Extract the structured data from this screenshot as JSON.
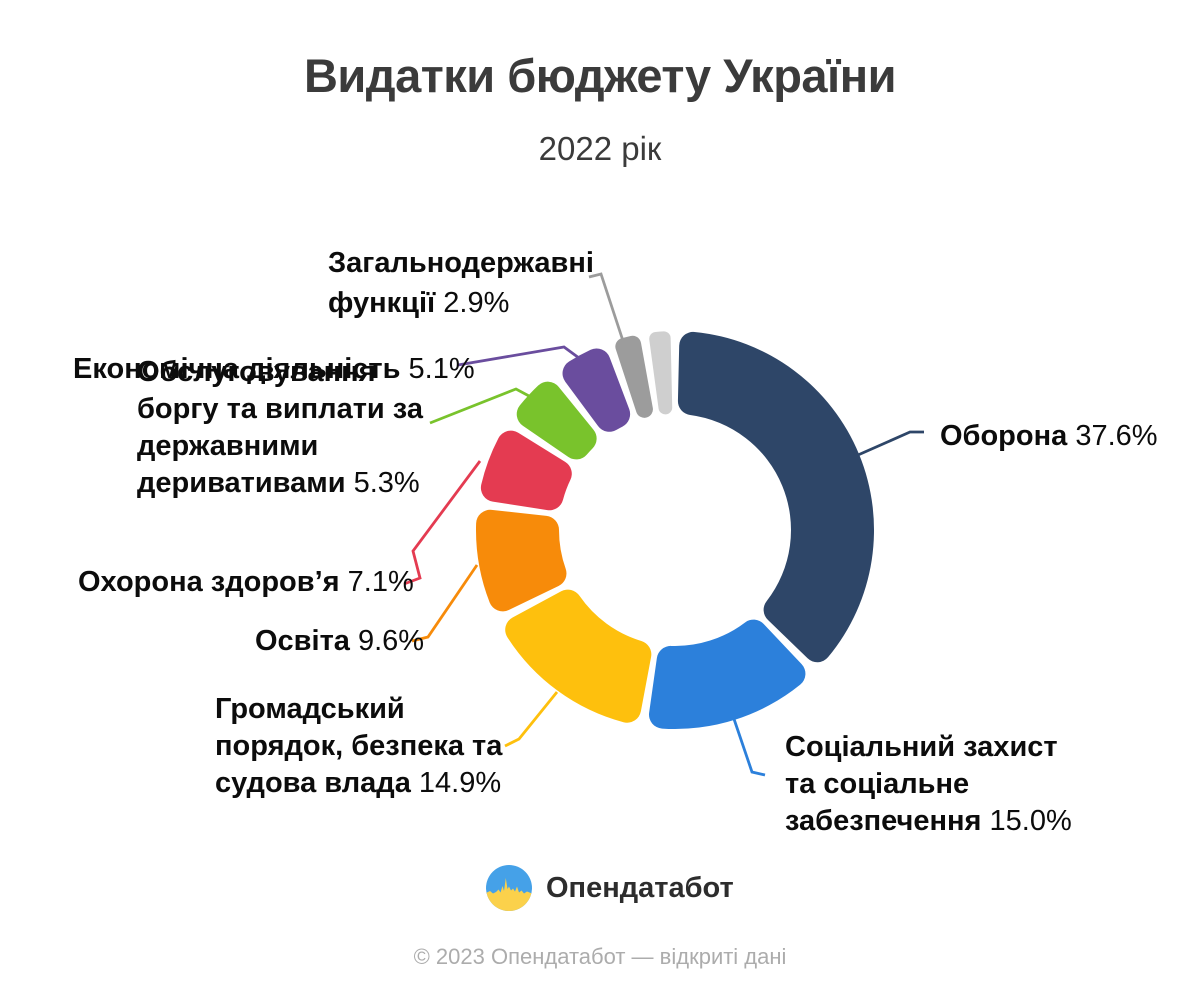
{
  "title": "Видатки бюджету України",
  "subtitle": "2022 рік",
  "footer": "© 2023 Опендатабот — відкриті дані",
  "logo": {
    "text": "Опендатабот",
    "icon": "opendatabot-flag-pulse-circle",
    "icon_colors": {
      "blue": "#45a1e8",
      "yellow": "#fbd14b"
    }
  },
  "chart_data": {
    "type": "pie",
    "donut": true,
    "title": "Видатки бюджету України",
    "subtitle": "2022 рік",
    "legend_position": "callout-labels",
    "series": [
      {
        "id": "oborona",
        "name": "Оборона",
        "value": 37.6,
        "color": "#2e4668",
        "label_visible": true
      },
      {
        "id": "sotsialnyi",
        "name": "Соціальний захист та соціальне забезпечення",
        "value": 15.0,
        "color": "#2c80db",
        "label_visible": true
      },
      {
        "id": "hromadskyi",
        "name": "Громадський порядок, безпека та судова влада",
        "value": 14.9,
        "color": "#fec00d",
        "label_visible": true
      },
      {
        "id": "osvita",
        "name": "Освіта",
        "value": 9.6,
        "color": "#f78b0a",
        "label_visible": true
      },
      {
        "id": "okhorona",
        "name": "Охорона здоров’я",
        "value": 7.1,
        "color": "#e43b51",
        "label_visible": true
      },
      {
        "id": "obsluhovuvannia",
        "name": "Обслуговування боргу та виплати за державними деривативами",
        "value": 5.3,
        "color": "#79c32c",
        "label_visible": true
      },
      {
        "id": "ekonomichna",
        "name": "Економічна діяльність",
        "value": 5.1,
        "color": "#6a4d9e",
        "label_visible": true
      },
      {
        "id": "zahalnoderzhavni",
        "name": "Загальнодержавні функції",
        "value": 2.9,
        "color": "#9c9c9c",
        "label_visible": true
      },
      {
        "id": "other",
        "name": "",
        "value": 2.5,
        "color": "#cfcfcf",
        "label_visible": false
      }
    ]
  },
  "callouts": [
    {
      "id": "zahalnoderzhavni",
      "lines": [
        {
          "b": "Загальнодержавні",
          "n": ""
        },
        {
          "b": "функції",
          "n": " 2.9%"
        }
      ]
    },
    {
      "id": "obsluhovuvannia",
      "lines": [
        {
          "b": "Обслуговування",
          "n": ""
        },
        {
          "b": "боргу та виплати за",
          "n": ""
        },
        {
          "b": "державними",
          "n": ""
        },
        {
          "b": "деривативами",
          "n": " 5.3%"
        }
      ]
    },
    {
      "id": "ekonomichna",
      "lines": [
        {
          "b": "Економічна діяльність",
          "n": " 5.1%"
        }
      ]
    },
    {
      "id": "okhorona",
      "lines": [
        {
          "b": "Охорона здоров’я",
          "n": " 7.1%"
        }
      ]
    },
    {
      "id": "osvita",
      "lines": [
        {
          "b": "Освіта",
          "n": " 9.6%"
        }
      ]
    },
    {
      "id": "hromadskyi",
      "lines": [
        {
          "b": "Громадський",
          "n": ""
        },
        {
          "b": "порядок, безпека та",
          "n": ""
        },
        {
          "b": "судова влада",
          "n": " 14.9%"
        }
      ]
    },
    {
      "id": "oborona",
      "lines": [
        {
          "b": "Оборона",
          "n": " 37.6%"
        }
      ]
    },
    {
      "id": "sotsialnyi",
      "lines": [
        {
          "b": "Соціальний захист",
          "n": ""
        },
        {
          "b": "та соціальне",
          "n": ""
        },
        {
          "b": "забезпечення",
          "n": " 15.0%"
        }
      ]
    }
  ]
}
